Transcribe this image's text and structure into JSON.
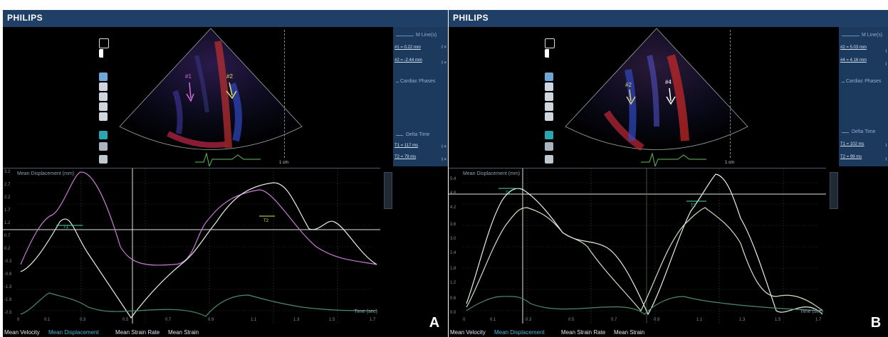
{
  "panels": [
    {
      "id": "A",
      "brand": "PHILIPS",
      "letter": "A",
      "mline": {
        "header": "M Line(s)",
        "items": [
          "#1 = 0.22 mm",
          "#2 = -2.44 mm"
        ]
      },
      "cardiac_phases": "Cardiac Phases",
      "delta_time": {
        "header": "Delta Time",
        "items": [
          "T1 = 117 ms",
          "T2 = 79 ms"
        ]
      },
      "graph_title": "Mean Displacement (mm)",
      "y_ticks": [
        "3.2",
        "2.7",
        "2.2",
        "1.7",
        "1.2",
        "0.7",
        "0.2",
        "-0.3",
        "-0.8",
        "-1.3",
        "-1.8",
        "-2.3"
      ],
      "x_ticks": [
        "0",
        "0.1",
        "0.3",
        "0.5",
        "0.7",
        "0.9",
        "1.1",
        "1.3",
        "1.5",
        "1.7"
      ],
      "time_label": "Time (sec)",
      "scale_label": "1 cm",
      "seg_labels": [
        "#1",
        "#2"
      ],
      "curve_labels": [
        "T1",
        "T2"
      ]
    },
    {
      "id": "B",
      "brand": "PHILIPS",
      "letter": "B",
      "mline": {
        "header": "M Line(s)",
        "items": [
          "#2 = 5.03 mm",
          "#4 = 4.16 mm"
        ]
      },
      "cardiac_phases": "Cardiac Phases",
      "delta_time": {
        "header": "Delta Time",
        "items": [
          "T1 = 102 ms",
          "T2 = 99 ms"
        ]
      },
      "graph_title": "Mean Displacement (mm)",
      "y_ticks": [
        "5.4",
        "4.8",
        "4.2",
        "3.6",
        "3.0",
        "2.4",
        "1.8",
        "1.2",
        "0.6",
        "0.0"
      ],
      "x_ticks": [
        "0",
        "0.1",
        "0.3",
        "0.5",
        "0.7",
        "0.9",
        "1.1",
        "1.3",
        "1.5",
        "1.7"
      ],
      "time_label": "Time (sec)",
      "scale_label": "1 cm",
      "seg_labels": [
        "#2",
        "#4"
      ],
      "curve_labels": [
        "T1",
        "T2"
      ]
    }
  ],
  "tabs": [
    "Mean Velocity",
    "Mean Displacement",
    "Mean Strain Rate",
    "Mean Strain"
  ],
  "active_tab": "Mean Displacement",
  "colors": {
    "brandbar": "#1f3f66",
    "sidebar": "#1c3a5e",
    "curve_pink": "#c97ad6",
    "curve_yellow": "#d6e3a3",
    "curve_white": "#e8f0e8",
    "curve_green": "#4c8a6c"
  }
}
